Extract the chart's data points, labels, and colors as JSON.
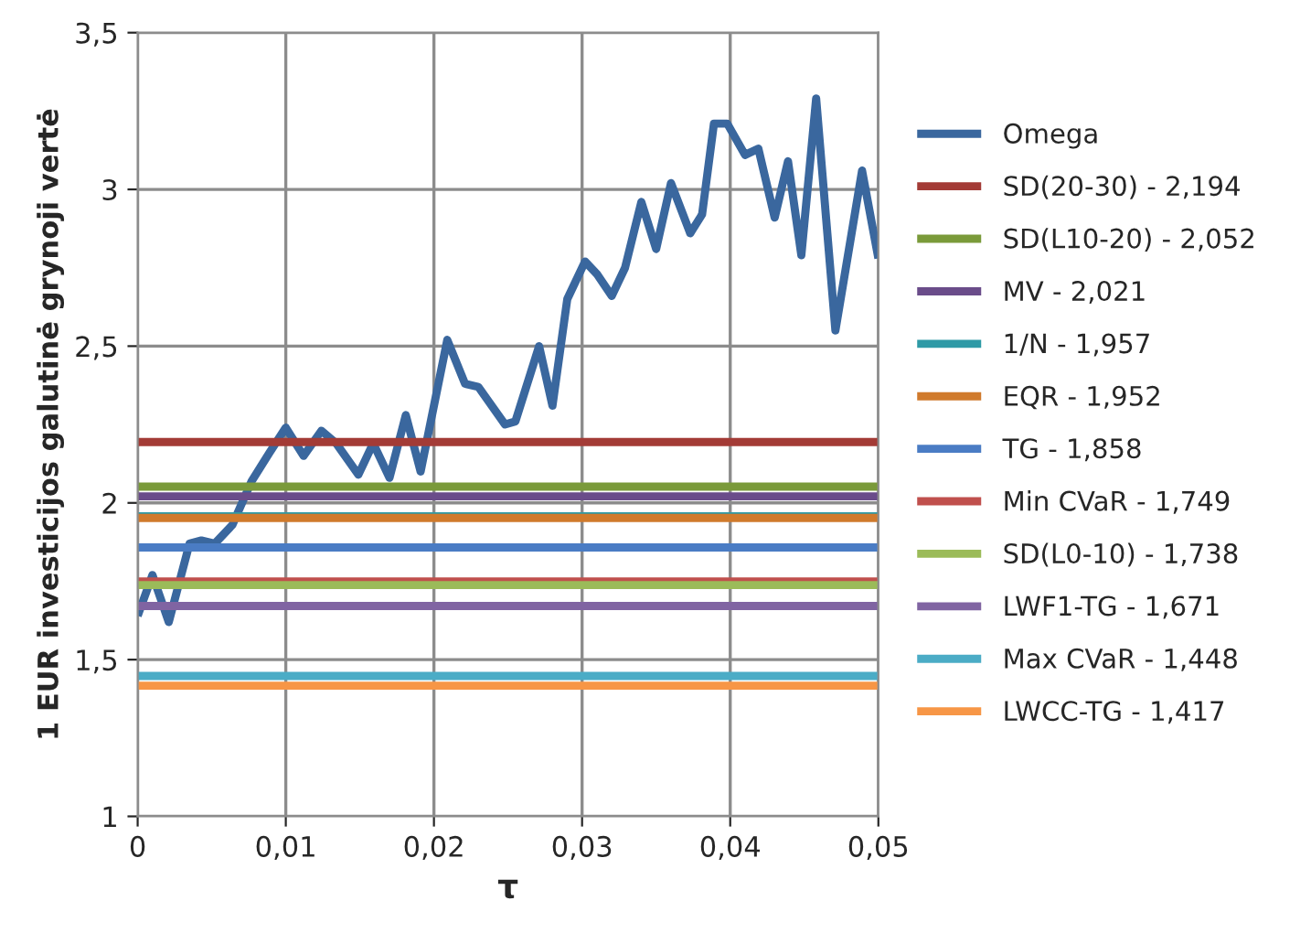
{
  "chart_data": {
    "type": "line",
    "xlabel": "τ",
    "ylabel": "1 EUR investicijos galutinė grynoji vertė",
    "xlim": [
      0,
      0.05
    ],
    "ylim": [
      1,
      3.5
    ],
    "xticks": [
      0,
      {
        "value": 0.01,
        "label": "0,01"
      },
      {
        "value": 0.02,
        "label": "0,02"
      },
      {
        "value": 0.03,
        "label": "0,03"
      },
      {
        "value": 0.04,
        "label": "0,04"
      },
      {
        "value": 0.05,
        "label": "0,05"
      }
    ],
    "yticks": [
      1,
      {
        "value": 1.5,
        "label": "1,5"
      },
      2,
      {
        "value": 2.5,
        "label": "2,5"
      },
      3,
      {
        "value": 3.5,
        "label": "3,5"
      }
    ],
    "grid": true,
    "legend": "right",
    "marker": "none",
    "line_style": "solid",
    "series": [
      {
        "name": "Omega",
        "color": "#3a679e",
        "x": [
          0,
          0.001,
          0.0021,
          0.0035,
          0.0043,
          0.0052,
          0.0064,
          0.0077,
          0.0089,
          0.01,
          0.0112,
          0.0124,
          0.0134,
          0.0149,
          0.0159,
          0.017,
          0.0181,
          0.0191,
          0.0209,
          0.0221,
          0.023,
          0.0248,
          0.0255,
          0.0271,
          0.028,
          0.029,
          0.0302,
          0.031,
          0.032,
          0.0329,
          0.034,
          0.035,
          0.036,
          0.0373,
          0.0381,
          0.0389,
          0.0398,
          0.041,
          0.0419,
          0.043,
          0.0439,
          0.0448,
          0.0458,
          0.0471,
          0.0489,
          0.05
        ],
        "values": [
          1.64,
          1.77,
          1.62,
          1.87,
          1.88,
          1.87,
          1.93,
          2.07,
          2.16,
          2.24,
          2.15,
          2.23,
          2.19,
          2.09,
          2.19,
          2.08,
          2.28,
          2.1,
          2.52,
          2.38,
          2.37,
          2.25,
          2.26,
          2.5,
          2.31,
          2.65,
          2.77,
          2.73,
          2.66,
          2.75,
          2.96,
          2.81,
          3.02,
          2.86,
          2.92,
          3.21,
          3.21,
          3.11,
          3.13,
          2.91,
          3.09,
          2.79,
          3.29,
          2.55,
          3.06,
          2.78
        ]
      },
      {
        "name": "SD(20-30) - 2,194",
        "color": "#a33b36",
        "x": [
          0,
          0.05
        ],
        "values": [
          2.194,
          2.194
        ]
      },
      {
        "name": "SD(L10-20) - 2,052",
        "color": "#7a9a3a",
        "x": [
          0,
          0.05
        ],
        "values": [
          2.052,
          2.052
        ]
      },
      {
        "name": "MV - 2,021",
        "color": "#6a4c8a",
        "x": [
          0,
          0.05
        ],
        "values": [
          2.021,
          2.021
        ]
      },
      {
        "name": "1/N - 1,957",
        "color": "#2e9aa6",
        "x": [
          0,
          0.05
        ],
        "values": [
          1.957,
          1.957
        ]
      },
      {
        "name": "EQR - 1,952",
        "color": "#d07a2c",
        "x": [
          0,
          0.05
        ],
        "values": [
          1.952,
          1.952
        ]
      },
      {
        "name": "TG - 1,858",
        "color": "#4a7cc4",
        "x": [
          0,
          0.05
        ],
        "values": [
          1.858,
          1.858
        ]
      },
      {
        "name": "Min CVaR - 1,749",
        "color": "#c0504d",
        "x": [
          0,
          0.05
        ],
        "values": [
          1.749,
          1.749
        ]
      },
      {
        "name": "SD(L0-10) - 1,738",
        "color": "#9bbb59",
        "x": [
          0,
          0.05
        ],
        "values": [
          1.738,
          1.738
        ]
      },
      {
        "name": "LWF1-TG - 1,671",
        "color": "#8064a2",
        "x": [
          0,
          0.05
        ],
        "values": [
          1.671,
          1.671
        ]
      },
      {
        "name": "Max CVaR - 1,448",
        "color": "#4bacc6",
        "x": [
          0,
          0.05
        ],
        "values": [
          1.448,
          1.448
        ]
      },
      {
        "name": "LWCC-TG - 1,417",
        "color": "#f79646",
        "x": [
          0,
          0.05
        ],
        "values": [
          1.417,
          1.417
        ]
      }
    ]
  }
}
